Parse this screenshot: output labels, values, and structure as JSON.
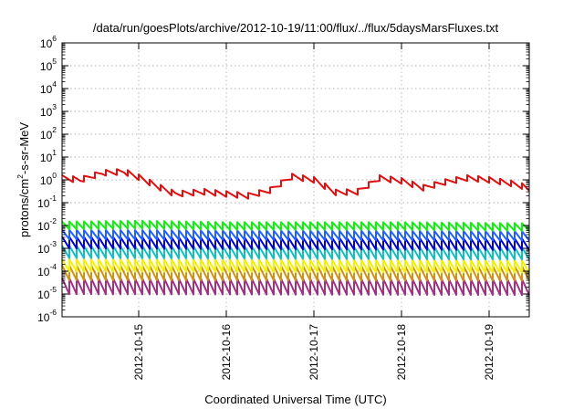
{
  "chart_data": {
    "type": "line",
    "title": "/data/run/goesPlots/archive/2012-10-19/11:00/flux/../flux/5daysMarsFluxes.txt",
    "xlabel": "Coordinated Universal Time (UTC)",
    "ylabel": {
      "base": "protons/cm",
      "sup": "2",
      "rest": "-s-sr-MeV"
    },
    "yscale": "log",
    "ylim": [
      1e-06,
      1000000.0
    ],
    "yticks": [
      {
        "value": 1000000.0,
        "base": "10",
        "exp": "6"
      },
      {
        "value": 100000.0,
        "base": "10",
        "exp": "5"
      },
      {
        "value": 10000.0,
        "base": "10",
        "exp": "4"
      },
      {
        "value": 1000.0,
        "base": "10",
        "exp": "3"
      },
      {
        "value": 100.0,
        "base": "10",
        "exp": "2"
      },
      {
        "value": 10.0,
        "base": "10",
        "exp": "1"
      },
      {
        "value": 1.0,
        "base": "10",
        "exp": "0"
      },
      {
        "value": 0.1,
        "base": "10",
        "exp": "-1"
      },
      {
        "value": 0.01,
        "base": "10",
        "exp": "-2"
      },
      {
        "value": 0.001,
        "base": "10",
        "exp": "-3"
      },
      {
        "value": 0.0001,
        "base": "10",
        "exp": "-4"
      },
      {
        "value": 1e-05,
        "base": "10",
        "exp": "-5"
      },
      {
        "value": 1e-06,
        "base": "10",
        "exp": "-6"
      }
    ],
    "xlim": [
      "2012-10-14T03:00",
      "2012-10-19T11:00"
    ],
    "xticks": [
      {
        "value": "2012-10-15T00:00",
        "label": "2012-10-15"
      },
      {
        "value": "2012-10-16T00:00",
        "label": "2012-10-16"
      },
      {
        "value": "2012-10-17T00:00",
        "label": "2012-10-17"
      },
      {
        "value": "2012-10-18T00:00",
        "label": "2012-10-18"
      },
      {
        "value": "2012-10-19T00:00",
        "label": "2012-10-19"
      }
    ],
    "grid": true,
    "series": [
      {
        "color": "#e01010",
        "sawtooth_period_hours": 3,
        "base_points": [
          {
            "x": "2012-10-14T03:00",
            "y": 1.2
          },
          {
            "x": "2012-10-14T08:00",
            "y": 1.0
          },
          {
            "x": "2012-10-14T14:00",
            "y": 2.0
          },
          {
            "x": "2012-10-14T20:00",
            "y": 2.3
          },
          {
            "x": "2012-10-15T00:00",
            "y": 1.3
          },
          {
            "x": "2012-10-15T06:00",
            "y": 0.45
          },
          {
            "x": "2012-10-15T10:00",
            "y": 0.24
          },
          {
            "x": "2012-10-15T18:00",
            "y": 0.3
          },
          {
            "x": "2012-10-16T00:00",
            "y": 0.24
          },
          {
            "x": "2012-10-16T06:00",
            "y": 0.2
          },
          {
            "x": "2012-10-16T12:00",
            "y": 0.35
          },
          {
            "x": "2012-10-16T18:00",
            "y": 1.4
          },
          {
            "x": "2012-10-17T00:00",
            "y": 1.0
          },
          {
            "x": "2012-10-17T06:00",
            "y": 0.28
          },
          {
            "x": "2012-10-17T12:00",
            "y": 0.3
          },
          {
            "x": "2012-10-17T18:00",
            "y": 1.2
          },
          {
            "x": "2012-10-18T00:00",
            "y": 0.9
          },
          {
            "x": "2012-10-18T06:00",
            "y": 0.45
          },
          {
            "x": "2012-10-18T12:00",
            "y": 0.8
          },
          {
            "x": "2012-10-18T18:00",
            "y": 1.2
          },
          {
            "x": "2012-10-19T00:00",
            "y": 1.0
          },
          {
            "x": "2012-10-19T06:00",
            "y": 0.7
          },
          {
            "x": "2012-10-19T11:00",
            "y": 0.45
          }
        ],
        "tooth_ratio": 1.8
      },
      {
        "color": "#10f010",
        "sawtooth_period_hours": 2,
        "base_points": [
          {
            "x": "2012-10-14T03:00",
            "y": 0.01
          },
          {
            "x": "2012-10-15T00:00",
            "y": 0.011
          },
          {
            "x": "2012-10-16T00:00",
            "y": 0.0095
          },
          {
            "x": "2012-10-17T00:00",
            "y": 0.0095
          },
          {
            "x": "2012-10-18T00:00",
            "y": 0.0095
          },
          {
            "x": "2012-10-19T11:00",
            "y": 0.0085
          }
        ],
        "tooth_ratio": 2.2
      },
      {
        "color": "#2060ff",
        "sawtooth_period_hours": 2,
        "base_points": [
          {
            "x": "2012-10-14T03:00",
            "y": 0.004
          },
          {
            "x": "2012-10-19T11:00",
            "y": 0.0035
          }
        ],
        "tooth_ratio": 2.6
      },
      {
        "color": "#0000cc",
        "sawtooth_period_hours": 2,
        "base_points": [
          {
            "x": "2012-10-14T03:00",
            "y": 0.0018
          },
          {
            "x": "2012-10-19T11:00",
            "y": 0.0015
          }
        ],
        "tooth_ratio": 3.2
      },
      {
        "color": "#10c0c0",
        "sawtooth_period_hours": 2,
        "base_points": [
          {
            "x": "2012-10-14T03:00",
            "y": 0.0007
          },
          {
            "x": "2012-10-19T11:00",
            "y": 0.0006
          }
        ],
        "tooth_ratio": 3.5
      },
      {
        "color": "#f2f200",
        "sawtooth_period_hours": 2,
        "base_points": [
          {
            "x": "2012-10-14T03:00",
            "y": 0.00018
          },
          {
            "x": "2012-10-19T11:00",
            "y": 0.00016
          }
        ],
        "tooth_ratio": 3.5
      },
      {
        "color": "#d09010",
        "sawtooth_period_hours": 2,
        "base_points": [
          {
            "x": "2012-10-14T03:00",
            "y": 8.5e-05
          },
          {
            "x": "2012-10-19T11:00",
            "y": 8e-05
          }
        ],
        "tooth_ratio": 4.5
      },
      {
        "color": "#a03080",
        "sawtooth_period_hours": 2,
        "base_points": [
          {
            "x": "2012-10-14T03:00",
            "y": 2.2e-05
          },
          {
            "x": "2012-10-19T11:00",
            "y": 2e-05
          }
        ],
        "tooth_ratio": 5.0
      }
    ]
  }
}
